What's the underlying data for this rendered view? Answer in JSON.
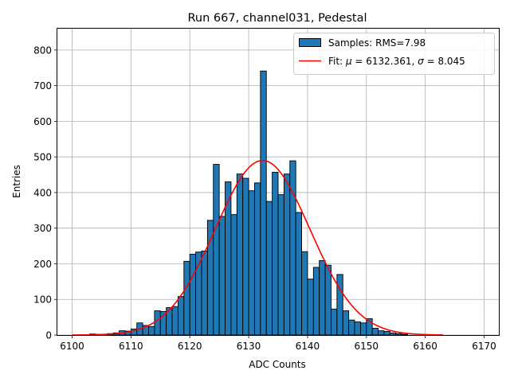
{
  "chart_data": {
    "type": "bar",
    "title": "Run 667, channel031, Pedestal",
    "xlabel": "ADC Counts",
    "ylabel": "Entries",
    "xlim": [
      6097.5,
      6172.5
    ],
    "ylim": [
      0,
      860
    ],
    "xticks": [
      6100,
      6110,
      6120,
      6130,
      6140,
      6150,
      6160,
      6170
    ],
    "yticks": [
      0,
      100,
      200,
      300,
      400,
      500,
      600,
      700,
      800
    ],
    "grid": true,
    "legend_position": "top-right",
    "colors": {
      "bar": "#1f77b4",
      "edge": "#000000",
      "fit": "#ff0000",
      "grid": "#b0b0b0"
    },
    "histogram": {
      "name": "Samples: RMS=7.98",
      "bin_start": 6100,
      "bin_width": 1,
      "counts": [
        0,
        0,
        0,
        3,
        2,
        2,
        4,
        6,
        12,
        11,
        17,
        34,
        27,
        24,
        68,
        66,
        77,
        80,
        108,
        207,
        227,
        233,
        236,
        322,
        479,
        333,
        430,
        338,
        452,
        440,
        405,
        427,
        741,
        375,
        457,
        394,
        452,
        489,
        344,
        234,
        157,
        190,
        209,
        196,
        73,
        170,
        68,
        42,
        37,
        34,
        46,
        19,
        12,
        10,
        6,
        4,
        2,
        0,
        0,
        0,
        0,
        0,
        0
      ]
    },
    "fit": {
      "name": "Fit: μ = 6132.361, σ = 8.045",
      "label_prefix": "Fit: ",
      "mu_symbol": "μ",
      "mu_text": " = 6132.361, ",
      "sigma_symbol": "σ",
      "sigma_text": " = 8.045",
      "mu": 6132.361,
      "sigma": 8.045,
      "amplitude": 490,
      "x_range": [
        6100,
        6163
      ]
    }
  }
}
